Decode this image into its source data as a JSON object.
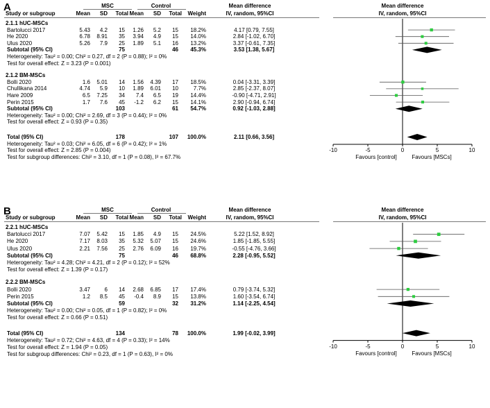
{
  "colors": {
    "square": "#2ecc40",
    "diamond": "#000000",
    "line": "#555555",
    "axis": "#000000"
  },
  "headers": {
    "study": "Study or subgroup",
    "msc": "MSC",
    "control": "Control",
    "mean": "Mean",
    "sd": "SD",
    "total": "Total",
    "weight": "Weight",
    "md": "Mean difference",
    "md_sub": "IV, random, 95%CI"
  },
  "panels": [
    {
      "letter": "A",
      "groups": [
        {
          "title": "2.1.1 hUC-MSCs",
          "studies": [
            {
              "name": "Bartolucci 2017",
              "m1": "5.43",
              "sd1": "4.2",
              "n1": "15",
              "m2": "1.26",
              "sd2": "5.2",
              "n2": "15",
              "w": "18.2%",
              "ci": "4.17 [0.79, 7.55]",
              "est": 4.17,
              "lo": 0.79,
              "hi": 7.55
            },
            {
              "name": "He 2020",
              "m1": "6.78",
              "sd1": "8.91",
              "n1": "35",
              "m2": "3.94",
              "sd2": "4.9",
              "n2": "15",
              "w": "14.0%",
              "ci": "2.84 [-1.02, 6.70]",
              "est": 2.84,
              "lo": -1.02,
              "hi": 6.7
            },
            {
              "name": "Ulus 2020",
              "m1": "5.26",
              "sd1": "7.9",
              "n1": "25",
              "m2": "1.89",
              "sd2": "5.1",
              "n2": "16",
              "w": "13.2%",
              "ci": "3.37 [-0.61, 7.35]",
              "est": 3.37,
              "lo": -0.61,
              "hi": 7.35
            }
          ],
          "subtotal": {
            "label": "Subtotal (95% CI)",
            "n1": "75",
            "n2": "46",
            "w": "45.3%",
            "ci": "3.53 [1.38, 5.67]",
            "est": 3.53,
            "lo": 1.38,
            "hi": 5.67
          },
          "het": "Heterogeneity: Tau² = 0.00; Chi² = 0.27, df = 2 (P = 0.88); I² = 0%",
          "overall": "Test for overall effect: Z = 3.23 (P = 0.001)"
        },
        {
          "title": "2.1.2 BM-MSCs",
          "studies": [
            {
              "name": "Bolli 2020",
              "m1": "1.6",
              "sd1": "5.01",
              "n1": "14",
              "m2": "1.56",
              "sd2": "4.39",
              "n2": "17",
              "w": "18.5%",
              "ci": "0.04 [-3.31, 3.39]",
              "est": 0.04,
              "lo": -3.31,
              "hi": 3.39
            },
            {
              "name": "Chullikana 2014",
              "m1": "4.74",
              "sd1": "5.9",
              "n1": "10",
              "m2": "1.89",
              "sd2": "6.01",
              "n2": "10",
              "w": "7.7%",
              "ci": "2.85 [-2.37, 8.07]",
              "est": 2.85,
              "lo": -2.37,
              "hi": 8.07
            },
            {
              "name": "Hare 2009",
              "m1": "6.5",
              "sd1": "7.25",
              "n1": "34",
              "m2": "7.4",
              "sd2": "6.5",
              "n2": "19",
              "w": "14.4%",
              "ci": "-0.90 [-4.71, 2.91]",
              "est": -0.9,
              "lo": -4.71,
              "hi": 2.91
            },
            {
              "name": "Perin 2015",
              "m1": "1.7",
              "sd1": "7.6",
              "n1": "45",
              "m2": "-1.2",
              "sd2": "6.2",
              "n2": "15",
              "w": "14.1%",
              "ci": "2.90 [-0.94, 6.74]",
              "est": 2.9,
              "lo": -0.94,
              "hi": 6.74
            }
          ],
          "subtotal": {
            "label": "Subtotal (95% CI)",
            "n1": "103",
            "n2": "61",
            "w": "54.7%",
            "ci": "0.92 [-1.03, 2.88]",
            "est": 0.92,
            "lo": -1.03,
            "hi": 2.88
          },
          "het": "Heterogeneity: Tau² = 0.00; Chi² = 2.69, df = 3 (P = 0.44); I² = 0%",
          "overall": "Test for overall effect: Z = 0.93 (P = 0.35)"
        }
      ],
      "total": {
        "label": "Total (95% CI)",
        "n1": "178",
        "n2": "107",
        "w": "100.0%",
        "ci": "2.11 [0.66, 3.56]",
        "est": 2.11,
        "lo": 0.66,
        "hi": 3.56
      },
      "total_het": "Heterogeneity: Tau² = 0.03; Chi² = 6.05, df = 6 (P = 0.42); I² = 1%",
      "total_overall": "Test for overall effect: Z = 2.85 (P = 0.004)",
      "subgroup_diff": "Test for subgroup differences: Chi² = 3.10, df = 1 (P = 0.08), I² = 67.7%",
      "ticks": [
        "-10",
        "-5",
        "0",
        "5",
        "10"
      ],
      "favours_left": "Favours [control]",
      "favours_right": "Favours [MSCs]"
    },
    {
      "letter": "B",
      "groups": [
        {
          "title": "2.2.1 hUC-MSCs",
          "studies": [
            {
              "name": "Bartolucci 2017",
              "m1": "7.07",
              "sd1": "5.42",
              "n1": "15",
              "m2": "1.85",
              "sd2": "4.9",
              "n2": "15",
              "w": "24.5%",
              "ci": "5.22 [1.52, 8.92]",
              "est": 5.22,
              "lo": 1.52,
              "hi": 8.92
            },
            {
              "name": "He 2020",
              "m1": "7.17",
              "sd1": "8.03",
              "n1": "35",
              "m2": "5.32",
              "sd2": "5.07",
              "n2": "15",
              "w": "24.6%",
              "ci": "1.85 [-1.85, 5.55]",
              "est": 1.85,
              "lo": -1.85,
              "hi": 5.55
            },
            {
              "name": "Ulus 2020",
              "m1": "2.21",
              "sd1": "7.56",
              "n1": "25",
              "m2": "2.76",
              "sd2": "6.09",
              "n2": "16",
              "w": "19.7%",
              "ci": "-0.55 [-4.76, 3.66]",
              "est": -0.55,
              "lo": -4.76,
              "hi": 3.66
            }
          ],
          "subtotal": {
            "label": "Subtotal (95% CI)",
            "n1": "75",
            "n2": "46",
            "w": "68.8%",
            "ci": "2.28 [-0.95, 5.52]",
            "est": 2.28,
            "lo": -0.95,
            "hi": 5.52
          },
          "het": "Heterogeneity: Tau² = 4.28; Chi² = 4.21, df = 2 (P = 0.12); I² = 52%",
          "overall": "Test for overall effect: Z = 1.39 (P = 0.17)"
        },
        {
          "title": "2.2.2 BM-MSCs",
          "studies": [
            {
              "name": "Bolli 2020",
              "m1": "3.47",
              "sd1": "6",
              "n1": "14",
              "m2": "2.68",
              "sd2": "6.85",
              "n2": "17",
              "w": "17.4%",
              "ci": "0.79 [-3.74, 5.32]",
              "est": 0.79,
              "lo": -3.74,
              "hi": 5.32
            },
            {
              "name": "Perin 2015",
              "m1": "1.2",
              "sd1": "8.5",
              "n1": "45",
              "m2": "-0.4",
              "sd2": "8.9",
              "n2": "15",
              "w": "13.8%",
              "ci": "1.60 [-3.54, 6.74]",
              "est": 1.6,
              "lo": -3.54,
              "hi": 6.74
            }
          ],
          "subtotal": {
            "label": "Subtotal (95% CI)",
            "n1": "59",
            "n2": "32",
            "w": "31.2%",
            "ci": "1.14 [-2.25, 4.54]",
            "est": 1.14,
            "lo": -2.25,
            "hi": 4.54
          },
          "het": "Heterogeneity: Tau² = 0.00; Chi² = 0.05, df = 1 (P = 0.82); I² = 0%",
          "overall": "Test for overall effect: Z = 0.66 (P = 0.51)"
        }
      ],
      "total": {
        "label": "Total (95% CI)",
        "n1": "134",
        "n2": "78",
        "w": "100.0%",
        "ci": "1.99 [-0.02, 3.99]",
        "est": 1.99,
        "lo": -0.02,
        "hi": 3.99
      },
      "total_het": "Heterogeneity: Tau² = 0.72; Chi² = 4.63, df = 4 (P = 0.33); I² = 14%",
      "total_overall": "Test for overall effect: Z = 1.94 (P = 0.05)",
      "subgroup_diff": "Test for subgroup differences: Chi² = 0.23, df = 1 (P = 0.63), I² = 0%",
      "ticks": [
        "-10",
        "-5",
        "0",
        "5",
        "10"
      ],
      "favours_left": "Favours [control]",
      "favours_right": "Favours [MSCs]"
    }
  ],
  "chart_data": [
    {
      "type": "forest",
      "title": "A",
      "xlabel": "Mean difference IV, random, 95%CI",
      "xlim": [
        -10,
        10
      ],
      "studies": [
        {
          "name": "Bartolucci 2017",
          "est": 4.17,
          "lo": 0.79,
          "hi": 7.55,
          "weight": 18.2
        },
        {
          "name": "He 2020",
          "est": 2.84,
          "lo": -1.02,
          "hi": 6.7,
          "weight": 14.0
        },
        {
          "name": "Ulus 2020",
          "est": 3.37,
          "lo": -0.61,
          "hi": 7.35,
          "weight": 13.2
        },
        {
          "name": "Bolli 2020",
          "est": 0.04,
          "lo": -3.31,
          "hi": 3.39,
          "weight": 18.5
        },
        {
          "name": "Chullikana 2014",
          "est": 2.85,
          "lo": -2.37,
          "hi": 8.07,
          "weight": 7.7
        },
        {
          "name": "Hare 2009",
          "est": -0.9,
          "lo": -4.71,
          "hi": 2.91,
          "weight": 14.4
        },
        {
          "name": "Perin 2015",
          "est": 2.9,
          "lo": -0.94,
          "hi": 6.74,
          "weight": 14.1
        }
      ],
      "pooled": [
        {
          "name": "Subtotal hUC-MSCs",
          "est": 3.53,
          "lo": 1.38,
          "hi": 5.67
        },
        {
          "name": "Subtotal BM-MSCs",
          "est": 0.92,
          "lo": -1.03,
          "hi": 2.88
        },
        {
          "name": "Total",
          "est": 2.11,
          "lo": 0.66,
          "hi": 3.56
        }
      ]
    },
    {
      "type": "forest",
      "title": "B",
      "xlabel": "Mean difference IV, random, 95%CI",
      "xlim": [
        -10,
        10
      ],
      "studies": [
        {
          "name": "Bartolucci 2017",
          "est": 5.22,
          "lo": 1.52,
          "hi": 8.92,
          "weight": 24.5
        },
        {
          "name": "He 2020",
          "est": 1.85,
          "lo": -1.85,
          "hi": 5.55,
          "weight": 24.6
        },
        {
          "name": "Ulus 2020",
          "est": -0.55,
          "lo": -4.76,
          "hi": 3.66,
          "weight": 19.7
        },
        {
          "name": "Bolli 2020",
          "est": 0.79,
          "lo": -3.74,
          "hi": 5.32,
          "weight": 17.4
        },
        {
          "name": "Perin 2015",
          "est": 1.6,
          "lo": -3.54,
          "hi": 6.74,
          "weight": 13.8
        }
      ],
      "pooled": [
        {
          "name": "Subtotal hUC-MSCs",
          "est": 2.28,
          "lo": -0.95,
          "hi": 5.52
        },
        {
          "name": "Subtotal BM-MSCs",
          "est": 1.14,
          "lo": -2.25,
          "hi": 4.54
        },
        {
          "name": "Total",
          "est": 1.99,
          "lo": -0.02,
          "hi": 3.99
        }
      ]
    }
  ]
}
